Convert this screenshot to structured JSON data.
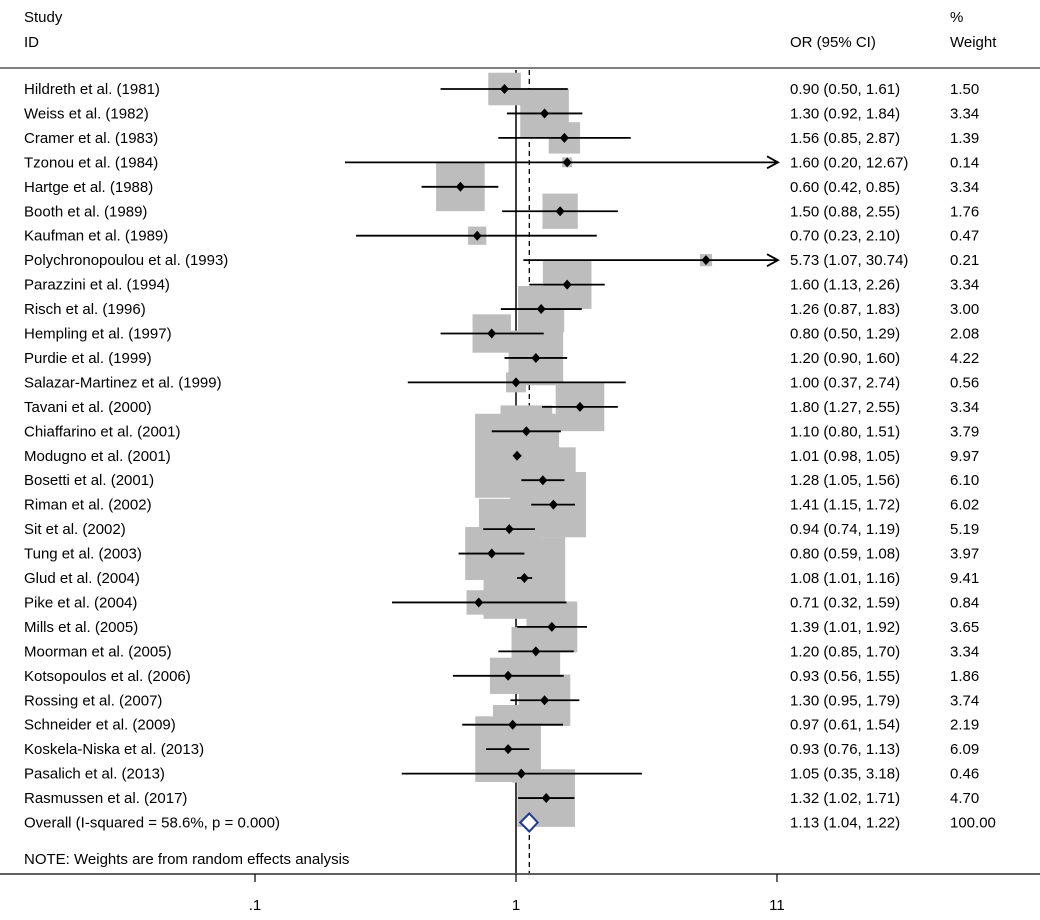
{
  "chart_data": {
    "type": "forest",
    "header": {
      "study_line1": "Study",
      "study_line2": "ID",
      "or_header": "OR (95% CI)",
      "weight_line1": "%",
      "weight_line2": "Weight"
    },
    "x_scale": "log",
    "x_ticks": [
      {
        "value": 0.0909,
        "label": ".1"
      },
      {
        "value": 1,
        "label": "1"
      },
      {
        "value": 11,
        "label": "11"
      }
    ],
    "reference_line": 1,
    "overall_line": 1.13,
    "studies": [
      {
        "name": "Hildreth et al. (1981)",
        "or": 0.9,
        "lo": 0.5,
        "hi": 1.61,
        "text": "0.90 (0.50, 1.61)",
        "weight": "1.50"
      },
      {
        "name": "Weiss et al. (1982)",
        "or": 1.3,
        "lo": 0.92,
        "hi": 1.84,
        "text": "1.30 (0.92, 1.84)",
        "weight": "3.34"
      },
      {
        "name": "Cramer et al. (1983)",
        "or": 1.56,
        "lo": 0.85,
        "hi": 2.87,
        "text": "1.56 (0.85, 2.87)",
        "weight": "1.39"
      },
      {
        "name": "Tzonou et al. (1984)",
        "or": 1.6,
        "lo": 0.2,
        "hi": 12.67,
        "text": "1.60 (0.20, 12.67)",
        "weight": "0.14"
      },
      {
        "name": "Hartge et al. (1988)",
        "or": 0.6,
        "lo": 0.42,
        "hi": 0.85,
        "text": "0.60 (0.42, 0.85)",
        "weight": "3.34"
      },
      {
        "name": "Booth et al. (1989)",
        "or": 1.5,
        "lo": 0.88,
        "hi": 2.55,
        "text": "1.50 (0.88, 2.55)",
        "weight": "1.76"
      },
      {
        "name": "Kaufman et al. (1989)",
        "or": 0.7,
        "lo": 0.23,
        "hi": 2.1,
        "text": "0.70 (0.23, 2.10)",
        "weight": "0.47"
      },
      {
        "name": "Polychronopoulou et al. (1993)",
        "or": 5.73,
        "lo": 1.07,
        "hi": 30.74,
        "text": "5.73 (1.07, 30.74)",
        "weight": "0.21"
      },
      {
        "name": "Parazzini et al. (1994)",
        "or": 1.6,
        "lo": 1.13,
        "hi": 2.26,
        "text": "1.60 (1.13, 2.26)",
        "weight": "3.34"
      },
      {
        "name": "Risch et al. (1996)",
        "or": 1.26,
        "lo": 0.87,
        "hi": 1.83,
        "text": "1.26 (0.87, 1.83)",
        "weight": "3.00"
      },
      {
        "name": "Hempling et al. (1997)",
        "or": 0.8,
        "lo": 0.5,
        "hi": 1.29,
        "text": "0.80 (0.50, 1.29)",
        "weight": "2.08"
      },
      {
        "name": "Purdie et al. (1999)",
        "or": 1.2,
        "lo": 0.9,
        "hi": 1.6,
        "text": "1.20 (0.90, 1.60)",
        "weight": "4.22"
      },
      {
        "name": "Salazar-Martinez et al. (1999)",
        "or": 1.0,
        "lo": 0.37,
        "hi": 2.74,
        "text": "1.00 (0.37, 2.74)",
        "weight": "0.56"
      },
      {
        "name": "Tavani et al. (2000)",
        "or": 1.8,
        "lo": 1.27,
        "hi": 2.55,
        "text": "1.80 (1.27, 2.55)",
        "weight": "3.34"
      },
      {
        "name": "Chiaffarino et al. (2001)",
        "or": 1.1,
        "lo": 0.8,
        "hi": 1.51,
        "text": "1.10 (0.80, 1.51)",
        "weight": "3.79"
      },
      {
        "name": "Modugno et al. (2001)",
        "or": 1.01,
        "lo": 0.98,
        "hi": 1.05,
        "text": "1.01 (0.98, 1.05)",
        "weight": "9.97"
      },
      {
        "name": "Bosetti et al. (2001)",
        "or": 1.28,
        "lo": 1.05,
        "hi": 1.56,
        "text": "1.28 (1.05, 1.56)",
        "weight": "6.10"
      },
      {
        "name": "Riman et al. (2002)",
        "or": 1.41,
        "lo": 1.15,
        "hi": 1.72,
        "text": "1.41 (1.15, 1.72)",
        "weight": "6.02"
      },
      {
        "name": "Sit et al. (2002)",
        "or": 0.94,
        "lo": 0.74,
        "hi": 1.19,
        "text": "0.94 (0.74, 1.19)",
        "weight": "5.19"
      },
      {
        "name": "Tung et al. (2003)",
        "or": 0.8,
        "lo": 0.59,
        "hi": 1.08,
        "text": "0.80 (0.59, 1.08)",
        "weight": "3.97"
      },
      {
        "name": "Glud et al. (2004)",
        "or": 1.08,
        "lo": 1.01,
        "hi": 1.16,
        "text": "1.08 (1.01, 1.16)",
        "weight": "9.41"
      },
      {
        "name": "Pike et al. (2004)",
        "or": 0.71,
        "lo": 0.32,
        "hi": 1.59,
        "text": "0.71 (0.32, 1.59)",
        "weight": "0.84"
      },
      {
        "name": "Mills et al. (2005)",
        "or": 1.39,
        "lo": 1.01,
        "hi": 1.92,
        "text": "1.39 (1.01, 1.92)",
        "weight": "3.65"
      },
      {
        "name": "Moorman et al. (2005)",
        "or": 1.2,
        "lo": 0.85,
        "hi": 1.7,
        "text": "1.20 (0.85, 1.70)",
        "weight": "3.34"
      },
      {
        "name": "Kotsopoulos et al. (2006)",
        "or": 0.93,
        "lo": 0.56,
        "hi": 1.55,
        "text": "0.93 (0.56, 1.55)",
        "weight": "1.86"
      },
      {
        "name": "Rossing et al. (2007)",
        "or": 1.3,
        "lo": 0.95,
        "hi": 1.79,
        "text": "1.30 (0.95, 1.79)",
        "weight": "3.74"
      },
      {
        "name": "Schneider et al. (2009)",
        "or": 0.97,
        "lo": 0.61,
        "hi": 1.54,
        "text": "0.97 (0.61, 1.54)",
        "weight": "2.19"
      },
      {
        "name": "Koskela-Niska et al. (2013)",
        "or": 0.93,
        "lo": 0.76,
        "hi": 1.13,
        "text": "0.93 (0.76, 1.13)",
        "weight": "6.09"
      },
      {
        "name": "Pasalich et al. (2013)",
        "or": 1.05,
        "lo": 0.35,
        "hi": 3.18,
        "text": "1.05 (0.35, 3.18)",
        "weight": "0.46"
      },
      {
        "name": "Rasmussen et al. (2017)",
        "or": 1.32,
        "lo": 1.02,
        "hi": 1.71,
        "text": "1.32 (1.02, 1.71)",
        "weight": "4.70"
      }
    ],
    "overall": {
      "name": "Overall  (I-squared = 58.6%, p = 0.000)",
      "or": 1.13,
      "lo": 1.04,
      "hi": 1.22,
      "text": "1.13 (1.04, 1.22)",
      "weight": "100.00"
    },
    "note": "NOTE: Weights are from random effects analysis",
    "colors": {
      "box": "#bdbdbd",
      "line": "#000000",
      "diamond": "#1f3a93"
    }
  }
}
